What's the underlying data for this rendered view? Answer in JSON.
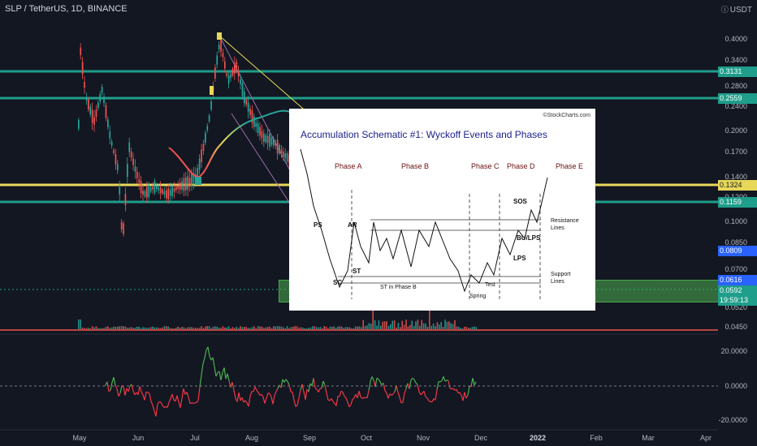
{
  "header": {
    "symbol": "SLP / TetherUS, 1D, BINANCE",
    "currency": "USDT",
    "currency_icon": "info-circle-icon"
  },
  "price_axis": {
    "labels": [
      "0.4000",
      "0.3400",
      "0.2800",
      "0.2400",
      "0.2000",
      "0.1700",
      "0.1400",
      "0.1200",
      "0.1000",
      "0.0850",
      "0.0700",
      "0.0520",
      "0.0450"
    ],
    "oscillator_labels": [
      "20.0000",
      "0.0000",
      "-20.0000"
    ]
  },
  "price_tags": [
    {
      "label": "0.3131",
      "color": "#1e9e8b"
    },
    {
      "label": "0.2559",
      "color": "#1e9e8b"
    },
    {
      "label": "0.1324",
      "color": "#e8d85a",
      "text_color": "#131722"
    },
    {
      "label": "0.1159",
      "color": "#1e9e8b"
    },
    {
      "label": "0.0809",
      "color": "#2962ff"
    },
    {
      "label": "0.0616",
      "color": "#2962ff"
    },
    {
      "label": "0.0592",
      "color": "#1e9e8b"
    },
    {
      "label": "19:59:13",
      "color": "#1e9e8b"
    }
  ],
  "time_axis": [
    "May",
    "Jun",
    "Jul",
    "Aug",
    "Sep",
    "Oct",
    "Nov",
    "Dec",
    "2022",
    "Feb",
    "Mar",
    "Apr"
  ],
  "schematic": {
    "title": "Accumulation Schematic #1: Wyckoff Events and Phases",
    "credit": "©StockCharts.com",
    "phases": [
      "Phase A",
      "Phase B",
      "Phase C",
      "Phase D",
      "Phase E"
    ],
    "events": {
      "ps": "PS",
      "sc": "SC",
      "ar": "AR",
      "st": "ST",
      "st_b": "ST in Phase B",
      "spring": "Spring",
      "test": "Test",
      "sos": "SOS",
      "lps": "LPS",
      "bu_lps": "BU/LPS"
    },
    "line_labels": {
      "resistance_1": "Resistance",
      "resistance_2": "Lines",
      "support_1": "Support",
      "support_2": "Lines"
    }
  },
  "colors": {
    "background": "#131722",
    "up": "#26a69a",
    "down": "#ef5350",
    "horizontal_line": "#1e9e8b",
    "yellow_line": "#e8d85a",
    "ma_line": "#ef5350",
    "oscillator_up": "#4caf50",
    "oscillator_down": "#f23645"
  }
}
